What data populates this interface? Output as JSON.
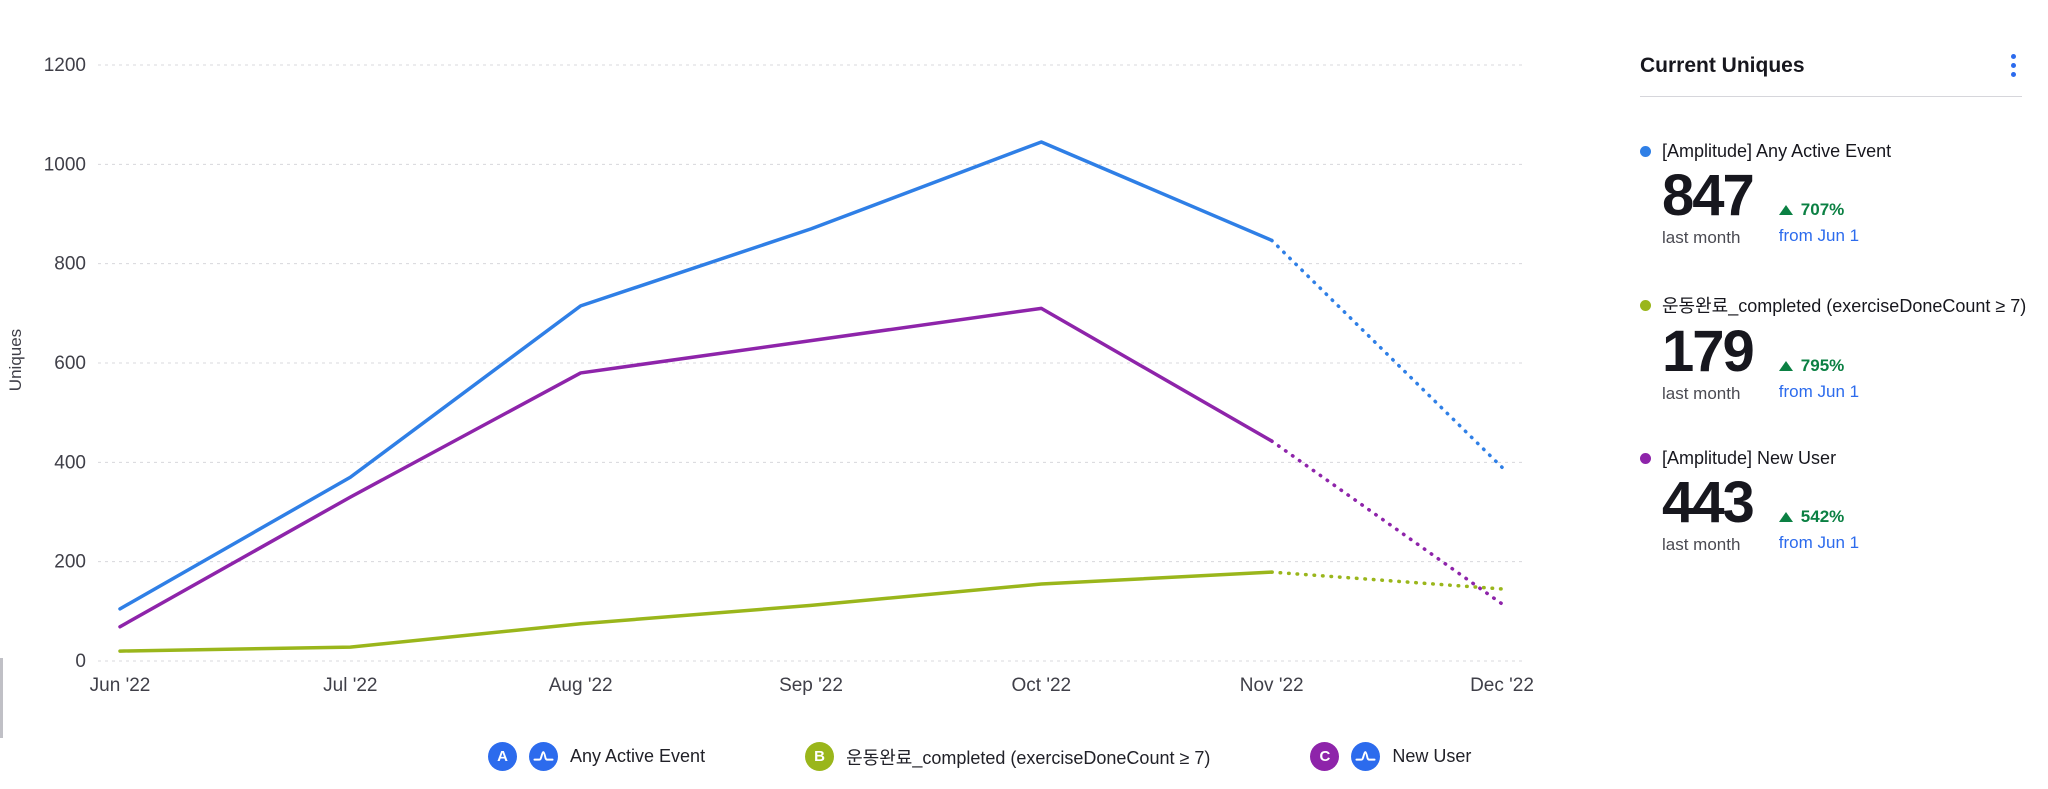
{
  "colors": {
    "series_blue": "#2F7FE6",
    "series_green": "#9AB61B",
    "series_purple": "#8E24AA",
    "badge_blue": "#2C6BED",
    "positive_green": "#0B8043",
    "link_blue": "#2C6BED",
    "axis_text": "#3F3F48",
    "gridline": "#D8D8DC"
  },
  "chart_data": {
    "type": "line",
    "title": "",
    "xlabel": "",
    "ylabel": "Uniques",
    "x": [
      "Jun '22",
      "Jul '22",
      "Aug '22",
      "Sep '22",
      "Oct '22",
      "Nov '22",
      "Dec '22"
    ],
    "y_ticks": [
      0,
      200,
      400,
      600,
      800,
      1000,
      1200
    ],
    "ylim": [
      0,
      1200
    ],
    "grid": true,
    "legend_position": "bottom",
    "dashed_from_index": 5,
    "series": [
      {
        "name": "[Amplitude] Any Active Event",
        "color": "#2F7FE6",
        "values": [
          105,
          370,
          715,
          870,
          1045,
          847,
          390
        ]
      },
      {
        "name": "운동완료_completed (exerciseDoneCount ≥ 7)",
        "color": "#9AB61B",
        "values": [
          20,
          28,
          75,
          112,
          155,
          179,
          145
        ]
      },
      {
        "name": "[Amplitude] New User",
        "color": "#8E24AA",
        "values": [
          69,
          330,
          580,
          645,
          710,
          443,
          115
        ]
      }
    ]
  },
  "panel": {
    "title": "Current Uniques",
    "menu_icon": "kebab-menu-icon",
    "metrics": [
      {
        "name": "[Amplitude] Any Active Event",
        "color": "#2F7FE6",
        "value": "847",
        "value_caption": "last month",
        "delta_direction": "up",
        "delta_pct": "707%",
        "delta_caption": "from Jun 1"
      },
      {
        "name": "운동완료_completed (exerciseDoneCount ≥ 7)",
        "color": "#9AB61B",
        "value": "179",
        "value_caption": "last month",
        "delta_direction": "up",
        "delta_pct": "795%",
        "delta_caption": "from Jun 1"
      },
      {
        "name": "[Amplitude] New User",
        "color": "#8E24AA",
        "value": "443",
        "value_caption": "last month",
        "delta_direction": "up",
        "delta_pct": "542%",
        "delta_caption": "from Jun 1"
      }
    ]
  },
  "legend": {
    "items": [
      {
        "badge": "A",
        "color": "#2C6BED",
        "amplitude_icon": true,
        "label": "Any Active Event"
      },
      {
        "badge": "B",
        "color": "#9AB61B",
        "amplitude_icon": false,
        "label": "운동완료_completed (exerciseDoneCount ≥ 7)"
      },
      {
        "badge": "C",
        "color": "#8E24AA",
        "amplitude_icon": true,
        "label": "New User"
      }
    ]
  }
}
